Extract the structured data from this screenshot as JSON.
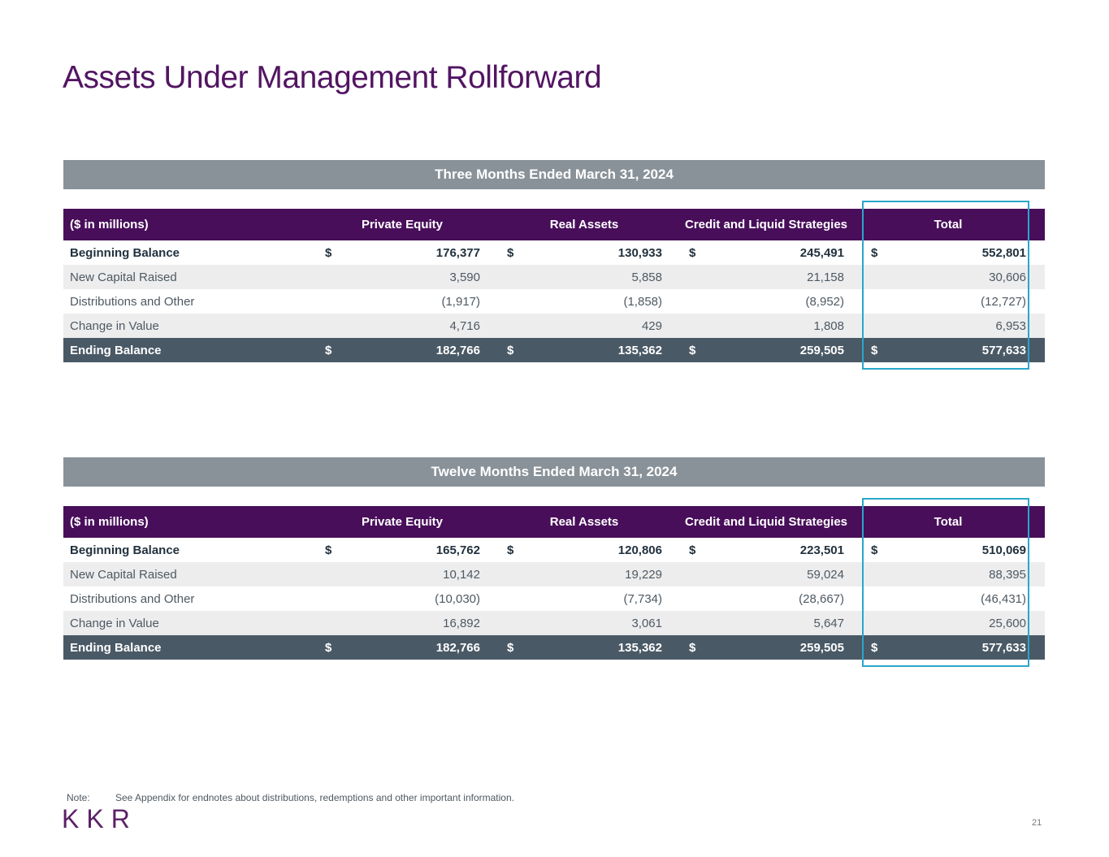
{
  "page": {
    "title": "Assets Under Management Rollforward",
    "page_number": "21"
  },
  "currency": "$",
  "tables": [
    {
      "period": "Three Months Ended March 31, 2024",
      "unit_label": "($ in millions)",
      "columns": [
        "Private Equity",
        "Real Assets",
        "Credit and Liquid Strategies",
        "Total"
      ],
      "rows": [
        {
          "label": "Beginning Balance",
          "values": [
            "176,377",
            "130,933",
            "245,491",
            "552,801"
          ]
        },
        {
          "label": "New Capital Raised",
          "values": [
            "3,590",
            "5,858",
            "21,158",
            "30,606"
          ]
        },
        {
          "label": "Distributions and Other",
          "values": [
            "(1,917)",
            "(1,858)",
            "(8,952)",
            "(12,727)"
          ]
        },
        {
          "label": "Change in Value",
          "values": [
            "4,716",
            "429",
            "1,808",
            "6,953"
          ]
        },
        {
          "label": "Ending Balance",
          "values": [
            "182,766",
            "135,362",
            "259,505",
            "577,633"
          ]
        }
      ]
    },
    {
      "period": "Twelve Months Ended March 31, 2024",
      "unit_label": "($ in millions)",
      "columns": [
        "Private Equity",
        "Real Assets",
        "Credit and Liquid Strategies",
        "Total"
      ],
      "rows": [
        {
          "label": "Beginning Balance",
          "values": [
            "165,762",
            "120,806",
            "223,501",
            "510,069"
          ]
        },
        {
          "label": "New Capital Raised",
          "values": [
            "10,142",
            "19,229",
            "59,024",
            "88,395"
          ]
        },
        {
          "label": "Distributions and Other",
          "values": [
            "(10,030)",
            "(7,734)",
            "(28,667)",
            "(46,431)"
          ]
        },
        {
          "label": "Change in Value",
          "values": [
            "16,892",
            "3,061",
            "5,647",
            "25,600"
          ]
        },
        {
          "label": "Ending Balance",
          "values": [
            "182,766",
            "135,362",
            "259,505",
            "577,633"
          ]
        }
      ]
    }
  ],
  "note": {
    "label": "Note:",
    "text": "See Appendix for endnotes about distributions, redemptions and other important information."
  },
  "logo_text": "KKR",
  "colors": {
    "title_purple": "#521562",
    "header_purple": "#480E5A",
    "band_gray": "#899299",
    "total_row_slate": "#4A5966",
    "zebra_gray": "#EDEDEE",
    "highlight_teal": "#2BA6CA",
    "body_text": "#4E5962",
    "bold_text": "#22323E"
  }
}
